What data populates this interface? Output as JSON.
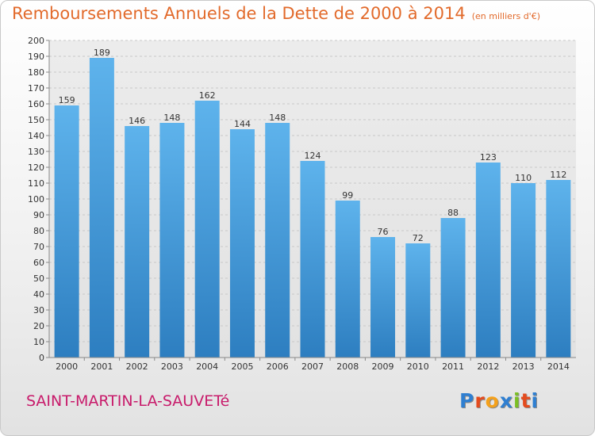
{
  "title": "Remboursements Annuels de la Dette de 2000 à 2014",
  "subtitle": "(en milliers d'€)",
  "commune": "SAINT-MARTIN-LA-SAUVETé",
  "logo": {
    "text": "Proxiti",
    "colors": [
      "#2f7fd1",
      "#e44b1e",
      "#f4a11c",
      "#2f7fd1",
      "#7bbf24",
      "#e44b1e",
      "#2f7fd1"
    ]
  },
  "colors": {
    "bar_top": "#5eb3ec",
    "bar_bottom": "#2d7ec0",
    "title": "#e26a2b",
    "commune": "#c81b6b"
  },
  "chart_data": {
    "type": "bar",
    "categories": [
      "2000",
      "2001",
      "2002",
      "2003",
      "2004",
      "2005",
      "2006",
      "2007",
      "2008",
      "2009",
      "2010",
      "2011",
      "2012",
      "2013",
      "2014"
    ],
    "values": [
      159,
      189,
      146,
      148,
      162,
      144,
      148,
      124,
      99,
      76,
      72,
      88,
      123,
      110,
      112
    ],
    "ylim": [
      0,
      200
    ],
    "yticks": [
      0,
      10,
      20,
      30,
      40,
      50,
      60,
      70,
      80,
      90,
      100,
      110,
      120,
      130,
      140,
      150,
      160,
      170,
      180,
      190,
      200
    ],
    "grid": true,
    "xlabel": "",
    "ylabel": ""
  }
}
